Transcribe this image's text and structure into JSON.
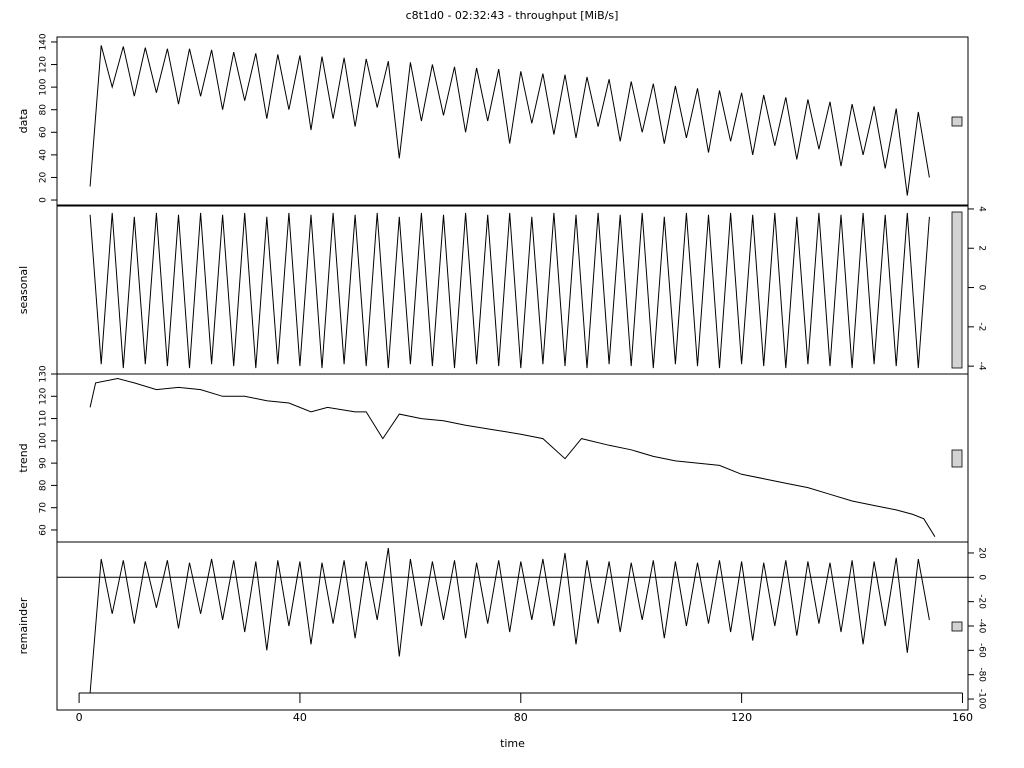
{
  "chart_data": [
    {
      "type": "line",
      "title": "c8t1d0 - 02:32:43 - throughput [MiB/s]",
      "ylabel": "data",
      "y_axis_side": "left",
      "color": "#000000",
      "xlim": [
        -4,
        161
      ],
      "ylim": [
        -4.4,
        144.4
      ],
      "yticks": [
        0,
        20,
        40,
        60,
        80,
        100,
        120,
        140
      ],
      "x": [
        2,
        4,
        6,
        8,
        10,
        12,
        14,
        16,
        18,
        20,
        22,
        24,
        26,
        28,
        30,
        32,
        34,
        36,
        38,
        40,
        42,
        44,
        46,
        48,
        50,
        52,
        54,
        56,
        58,
        60,
        62,
        64,
        66,
        68,
        70,
        72,
        74,
        76,
        78,
        80,
        82,
        84,
        86,
        88,
        90,
        92,
        94,
        96,
        98,
        100,
        102,
        104,
        106,
        108,
        110,
        112,
        114,
        116,
        118,
        120,
        122,
        124,
        126,
        128,
        130,
        132,
        134,
        136,
        138,
        140,
        142,
        144,
        146,
        148,
        150,
        152,
        154
      ],
      "values": [
        12,
        137,
        100,
        136,
        92,
        135,
        95,
        134,
        85,
        134,
        92,
        133,
        80,
        131,
        88,
        130,
        72,
        129,
        80,
        128,
        62,
        127,
        72,
        126,
        65,
        125,
        82,
        123,
        37,
        122,
        70,
        120,
        75,
        118,
        60,
        117,
        70,
        116,
        50,
        114,
        68,
        112,
        58,
        111,
        55,
        109,
        65,
        107,
        52,
        105,
        60,
        103,
        50,
        101,
        55,
        99,
        42,
        97,
        52,
        95,
        40,
        93,
        48,
        91,
        36,
        89,
        45,
        87,
        30,
        85,
        40,
        83,
        28,
        81,
        4,
        78,
        20
      ]
    },
    {
      "type": "line",
      "ylabel": "seasonal",
      "y_axis_side": "right",
      "color": "#000000",
      "xlim": [
        -4,
        161
      ],
      "ylim": [
        -4.4,
        4.15
      ],
      "yticks": [
        -4,
        -2,
        0,
        2,
        4
      ],
      "x": [
        2,
        4,
        6,
        8,
        10,
        12,
        14,
        16,
        18,
        20,
        22,
        24,
        26,
        28,
        30,
        32,
        34,
        36,
        38,
        40,
        42,
        44,
        46,
        48,
        50,
        52,
        54,
        56,
        58,
        60,
        62,
        64,
        66,
        68,
        70,
        72,
        74,
        76,
        78,
        80,
        82,
        84,
        86,
        88,
        90,
        92,
        94,
        96,
        98,
        100,
        102,
        104,
        106,
        108,
        110,
        112,
        114,
        116,
        118,
        120,
        122,
        124,
        126,
        128,
        130,
        132,
        134,
        136,
        138,
        140,
        142,
        144,
        146,
        148,
        150,
        152,
        154
      ],
      "values": [
        3.7,
        -3.9,
        3.8,
        -4.1,
        3.6,
        -3.9,
        3.8,
        -4.0,
        3.7,
        -4.1,
        3.8,
        -3.9,
        3.7,
        -4.0,
        3.8,
        -4.1,
        3.6,
        -3.9,
        3.8,
        -4.0,
        3.7,
        -4.1,
        3.8,
        -3.9,
        3.7,
        -4.0,
        3.8,
        -4.1,
        3.6,
        -3.9,
        3.8,
        -4.0,
        3.7,
        -4.1,
        3.8,
        -3.9,
        3.7,
        -4.0,
        3.8,
        -4.1,
        3.6,
        -3.9,
        3.8,
        -4.0,
        3.7,
        -4.1,
        3.8,
        -3.9,
        3.7,
        -4.0,
        3.8,
        -4.1,
        3.6,
        -3.9,
        3.8,
        -4.0,
        3.7,
        -4.1,
        3.8,
        -3.9,
        3.7,
        -4.0,
        3.8,
        -4.1,
        3.6,
        -3.9,
        3.8,
        -4.0,
        3.7,
        -4.1,
        3.8,
        -3.9,
        3.7,
        -4.0,
        3.8,
        -4.1,
        3.6
      ]
    },
    {
      "type": "line",
      "ylabel": "trend",
      "y_axis_side": "left",
      "color": "#000000",
      "xlim": [
        -4,
        161
      ],
      "ylim": [
        54.6,
        130
      ],
      "yticks": [
        60,
        70,
        80,
        90,
        100,
        110,
        120,
        130
      ],
      "x": [
        2,
        3,
        7,
        10,
        14,
        18,
        22,
        26,
        30,
        34,
        38,
        42,
        45,
        50,
        52,
        55,
        58,
        62,
        66,
        70,
        75,
        80,
        84,
        88,
        91,
        96,
        100,
        104,
        108,
        112,
        116,
        120,
        124,
        128,
        132,
        136,
        140,
        144,
        148,
        151,
        153,
        155
      ],
      "values": [
        115,
        126,
        128,
        126,
        123,
        124,
        123,
        120,
        120,
        118,
        117,
        113,
        115,
        113,
        113,
        101,
        112,
        110,
        109,
        107,
        105,
        103,
        101,
        92,
        101,
        98,
        96,
        93,
        91,
        90,
        89,
        85,
        83,
        81,
        79,
        76,
        73,
        71,
        69,
        67,
        65,
        57
      ]
    },
    {
      "type": "line",
      "ylabel": "remainder",
      "y_axis_side": "right",
      "color": "#000000",
      "zero_line": true,
      "xlim": [
        -4,
        161
      ],
      "ylim": [
        -109,
        29
      ],
      "yticks": [
        -100,
        -80,
        -60,
        -40,
        -20,
        0,
        20
      ],
      "xticks": [
        0,
        40,
        80,
        120,
        160
      ],
      "xlabel": "time",
      "x": [
        2,
        4,
        6,
        8,
        10,
        12,
        14,
        16,
        18,
        20,
        22,
        24,
        26,
        28,
        30,
        32,
        34,
        36,
        38,
        40,
        42,
        44,
        46,
        48,
        50,
        52,
        54,
        56,
        58,
        60,
        62,
        64,
        66,
        68,
        70,
        72,
        74,
        76,
        78,
        80,
        82,
        84,
        86,
        88,
        90,
        92,
        94,
        96,
        98,
        100,
        102,
        104,
        106,
        108,
        110,
        112,
        114,
        116,
        118,
        120,
        122,
        124,
        126,
        128,
        130,
        132,
        134,
        136,
        138,
        140,
        142,
        144,
        146,
        148,
        150,
        152,
        154
      ],
      "values": [
        -95,
        15,
        -30,
        14,
        -38,
        13,
        -25,
        14,
        -42,
        12,
        -30,
        15,
        -35,
        14,
        -45,
        13,
        -60,
        14,
        -40,
        13,
        -55,
        12,
        -38,
        14,
        -50,
        13,
        -35,
        24,
        -65,
        15,
        -40,
        13,
        -35,
        14,
        -50,
        12,
        -38,
        14,
        -45,
        13,
        -35,
        15,
        -40,
        20,
        -55,
        14,
        -38,
        13,
        -45,
        12,
        -35,
        14,
        -50,
        13,
        -40,
        12,
        -38,
        14,
        -45,
        13,
        -52,
        12,
        -40,
        14,
        -48,
        13,
        -38,
        12,
        -45,
        14,
        -55,
        13,
        -40,
        16,
        -62,
        15,
        -35
      ]
    }
  ]
}
